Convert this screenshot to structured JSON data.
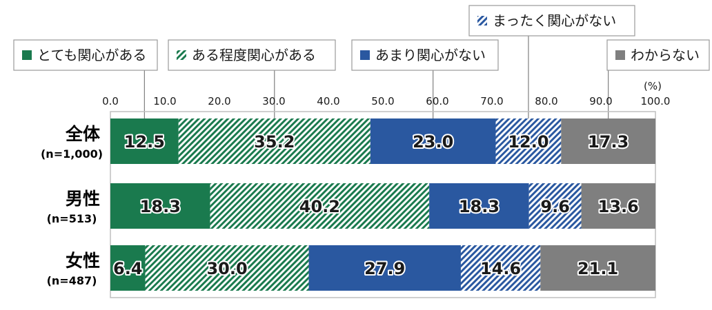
{
  "chart_data": {
    "type": "bar",
    "orientation": "horizontal",
    "stacked": true,
    "unit": "(%)",
    "xlim": [
      0,
      100
    ],
    "xticks": [
      "0.0",
      "10.0",
      "20.0",
      "30.0",
      "40.0",
      "50.0",
      "60.0",
      "70.0",
      "80.0",
      "90.0",
      "100.0"
    ],
    "categories": [
      {
        "name": "全体",
        "n": "(n=1,000)"
      },
      {
        "name": "男性",
        "n": "(n=513)"
      },
      {
        "name": "女性",
        "n": "(n=487)"
      }
    ],
    "series": [
      {
        "name": "とても関心がある",
        "color": "#1a7a4e",
        "pattern": "solid",
        "values": [
          12.5,
          18.3,
          6.4
        ]
      },
      {
        "name": "ある程度関心がある",
        "color": "#1a7a4e",
        "pattern": "hatch",
        "values": [
          35.2,
          40.2,
          30.0
        ]
      },
      {
        "name": "あまり関心がない",
        "color": "#2a58a0",
        "pattern": "solid",
        "values": [
          23.0,
          18.3,
          27.9
        ]
      },
      {
        "name": "まったく関心がない",
        "color": "#2a58a0",
        "pattern": "hatch",
        "values": [
          12.0,
          9.6,
          14.6
        ]
      },
      {
        "name": "わからない",
        "color": "#7f7f7f",
        "pattern": "solid",
        "values": [
          17.3,
          13.6,
          21.1
        ]
      }
    ],
    "legend_placement": "top, staggered with leader lines",
    "grid": false
  }
}
